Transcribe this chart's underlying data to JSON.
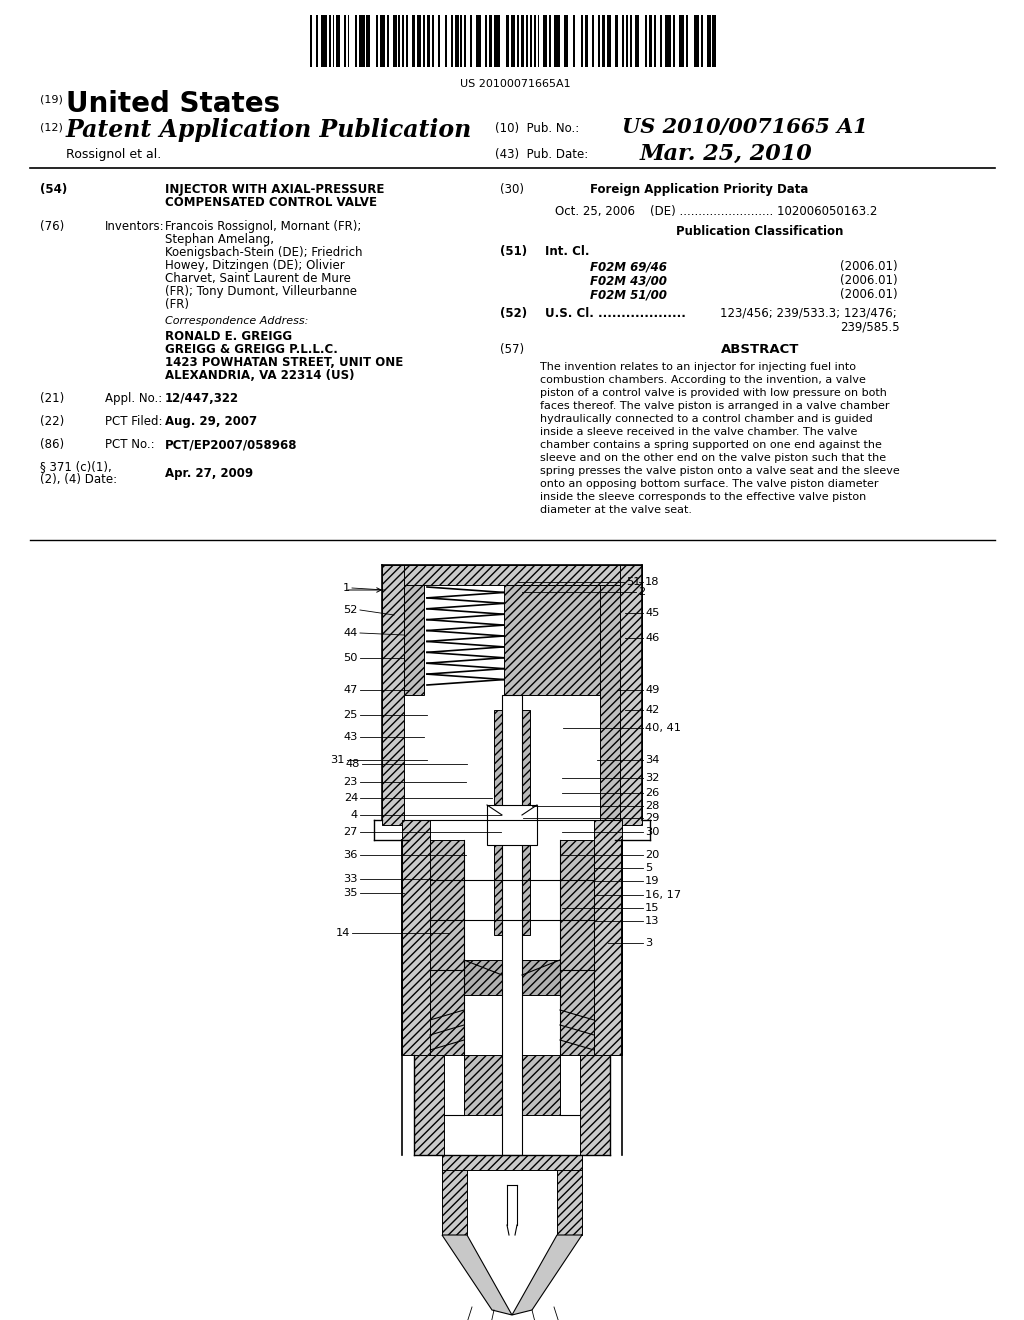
{
  "background_color": "#ffffff",
  "barcode_text": "US 20100071665A1",
  "country": "United States",
  "doc_type": "Patent Application Publication",
  "applicant": "Rossignol et al.",
  "pub_no_label": "(10)  Pub. No.:",
  "pub_no_value": "US 2010/0071665 A1",
  "pub_date_label": "(43)  Pub. Date:",
  "pub_date_value": "Mar. 25, 2010",
  "title_num": "(54)",
  "title_line1": "INJECTOR WITH AXIAL-PRESSURE",
  "title_line2": "COMPENSATED CONTROL VALVE",
  "inventors_num": "(76)",
  "inventors_label": "Inventors:",
  "inv_line1": "Francois Rossignol, Mornant (FR);",
  "inv_line2": "Stephan Amelang,",
  "inv_line3": "Koenigsbach-Stein (DE); Friedrich",
  "inv_line4": "Howey, Ditzingen (DE); Olivier",
  "inv_line5": "Charvet, Saint Laurent de Mure",
  "inv_line6": "(FR); Tony Dumont, Villeurbanne",
  "inv_line7": "(FR)",
  "corr_header": "Correspondence Address:",
  "corr1": "RONALD E. GREIGG",
  "corr2": "GREIGG & GREIGG P.L.L.C.",
  "corr3": "1423 POWHATAN STREET, UNIT ONE",
  "corr4": "ALEXANDRIA, VA 22314 (US)",
  "appl_num": "(21)",
  "appl_label": "Appl. No.:",
  "appl_value": "12/447,322",
  "pct_filed_num": "(22)",
  "pct_filed_label": "PCT Filed:",
  "pct_filed_value": "Aug. 29, 2007",
  "pct_no_num": "(86)",
  "pct_no_label": "PCT No.:",
  "pct_no_value": "PCT/EP2007/058968",
  "sec371_line1": "§ 371 (c)(1),",
  "sec371_line2": "(2), (4) Date:",
  "sec371_value": "Apr. 27, 2009",
  "foreign_num": "(30)",
  "foreign_label": "Foreign Application Priority Data",
  "foreign_data": "Oct. 25, 2006    (DE) ......................... 102006050163.2",
  "pub_class_label": "Publication Classification",
  "int_cl_num": "(51)",
  "int_cl_label": "Int. Cl.",
  "ic1_class": "F02M 69/46",
  "ic1_year": "(2006.01)",
  "ic2_class": "F02M 43/00",
  "ic2_year": "(2006.01)",
  "ic3_class": "F02M 51/00",
  "ic3_year": "(2006.01)",
  "us_cl_num": "(52)",
  "us_cl_label": "U.S. Cl. ...................",
  "us_cl_value": "123/456; 239/533.3; 123/476;",
  "us_cl_value2": "239/585.5",
  "abstract_num": "(57)",
  "abstract_label": "ABSTRACT",
  "abs1": "The invention relates to an injector for injecting fuel into",
  "abs2": "combustion chambers. According to the invention, a valve",
  "abs3": "piston of a control valve is provided with low pressure on both",
  "abs4": "faces thereof. The valve piston is arranged in a valve chamber",
  "abs5": "hydraulically connected to a control chamber and is guided",
  "abs6": "inside a sleeve received in the valve chamber. The valve",
  "abs7": "chamber contains a spring supported on one end against the",
  "abs8": "sleeve and on the other end on the valve piston such that the",
  "abs9": "spring presses the valve piston onto a valve seat and the sleeve",
  "abs10": "onto an opposing bottom surface. The valve piston diameter",
  "abs11": "inside the sleeve corresponds to the effective valve piston",
  "abs12": "diameter at the valve seat."
}
